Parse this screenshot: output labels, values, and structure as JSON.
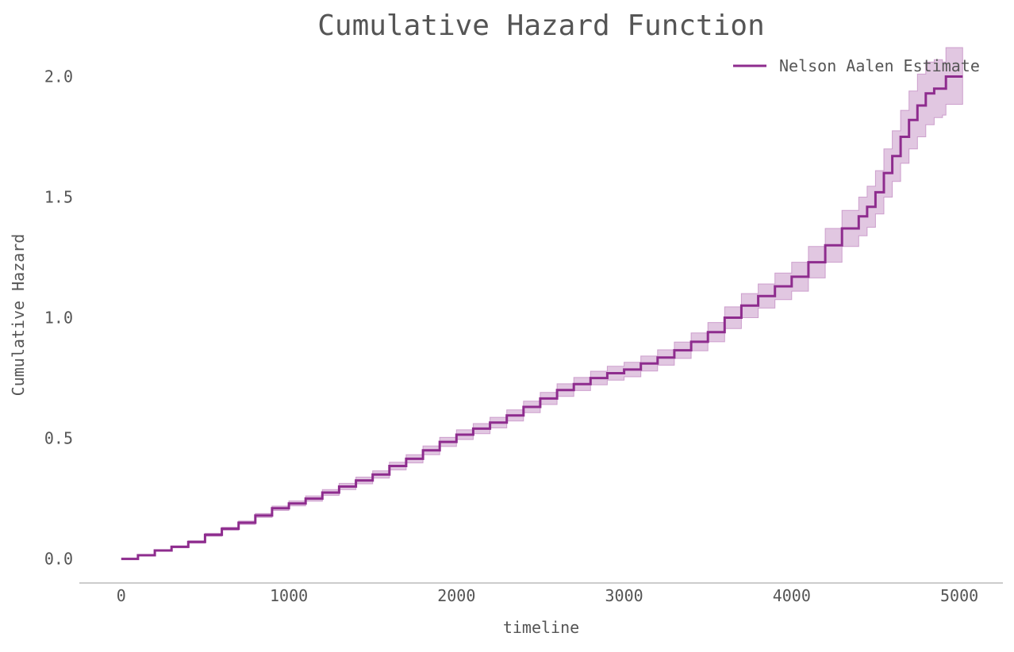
{
  "chart_data": {
    "type": "line",
    "title": "Cumulative Hazard Function",
    "xlabel": "timeline",
    "ylabel": "Cumulative Hazard",
    "xlim": [
      -250,
      5260
    ],
    "ylim": [
      -0.1,
      2.12
    ],
    "x_ticks": [
      "0",
      "1000",
      "2000",
      "3000",
      "4000",
      "5000"
    ],
    "y_ticks": [
      "0.0",
      "0.5",
      "1.0",
      "1.5",
      "2.0"
    ],
    "grid": false,
    "legend_position": "top-right",
    "colors": {
      "line": "#8e2c8e",
      "band": "#c48fc4",
      "text": "#555555",
      "axis": "#bbbbbb"
    },
    "series": [
      {
        "name": "Nelson Aalen Estimate",
        "x": [
          0,
          100,
          200,
          300,
          400,
          500,
          600,
          700,
          800,
          900,
          1000,
          1100,
          1200,
          1300,
          1400,
          1500,
          1600,
          1700,
          1800,
          1900,
          2000,
          2100,
          2200,
          2300,
          2400,
          2500,
          2600,
          2700,
          2800,
          2900,
          3000,
          3100,
          3200,
          3300,
          3400,
          3500,
          3600,
          3700,
          3800,
          3900,
          4000,
          4100,
          4200,
          4300,
          4400,
          4450,
          4500,
          4550,
          4600,
          4650,
          4700,
          4750,
          4800,
          4850,
          4900,
          4920,
          5020
        ],
        "y": [
          0.0,
          0.015,
          0.035,
          0.05,
          0.07,
          0.1,
          0.125,
          0.15,
          0.18,
          0.21,
          0.23,
          0.25,
          0.275,
          0.3,
          0.325,
          0.35,
          0.385,
          0.415,
          0.45,
          0.485,
          0.515,
          0.54,
          0.565,
          0.595,
          0.63,
          0.665,
          0.7,
          0.725,
          0.75,
          0.77,
          0.785,
          0.81,
          0.835,
          0.865,
          0.9,
          0.94,
          1.0,
          1.05,
          1.09,
          1.13,
          1.17,
          1.23,
          1.3,
          1.37,
          1.42,
          1.46,
          1.52,
          1.6,
          1.67,
          1.75,
          1.82,
          1.88,
          1.93,
          1.95,
          1.95,
          2.0,
          2.0
        ],
        "lower": [
          0.0,
          0.013,
          0.032,
          0.046,
          0.065,
          0.094,
          0.119,
          0.143,
          0.172,
          0.201,
          0.22,
          0.239,
          0.263,
          0.287,
          0.311,
          0.335,
          0.369,
          0.398,
          0.432,
          0.466,
          0.495,
          0.519,
          0.543,
          0.572,
          0.606,
          0.64,
          0.674,
          0.698,
          0.722,
          0.741,
          0.755,
          0.779,
          0.803,
          0.831,
          0.863,
          0.9,
          0.955,
          1.0,
          1.04,
          1.075,
          1.11,
          1.165,
          1.23,
          1.295,
          1.34,
          1.375,
          1.43,
          1.5,
          1.565,
          1.64,
          1.7,
          1.75,
          1.8,
          1.83,
          1.84,
          1.885,
          1.885
        ],
        "upper": [
          0.0,
          0.017,
          0.038,
          0.054,
          0.075,
          0.106,
          0.131,
          0.157,
          0.188,
          0.219,
          0.24,
          0.261,
          0.287,
          0.313,
          0.339,
          0.365,
          0.401,
          0.432,
          0.468,
          0.504,
          0.535,
          0.561,
          0.587,
          0.618,
          0.654,
          0.69,
          0.726,
          0.752,
          0.778,
          0.799,
          0.815,
          0.841,
          0.867,
          0.899,
          0.937,
          0.98,
          1.045,
          1.1,
          1.14,
          1.185,
          1.23,
          1.295,
          1.37,
          1.445,
          1.5,
          1.545,
          1.61,
          1.7,
          1.775,
          1.86,
          1.94,
          2.01,
          2.06,
          2.07,
          2.06,
          2.12,
          2.12
        ]
      }
    ]
  }
}
